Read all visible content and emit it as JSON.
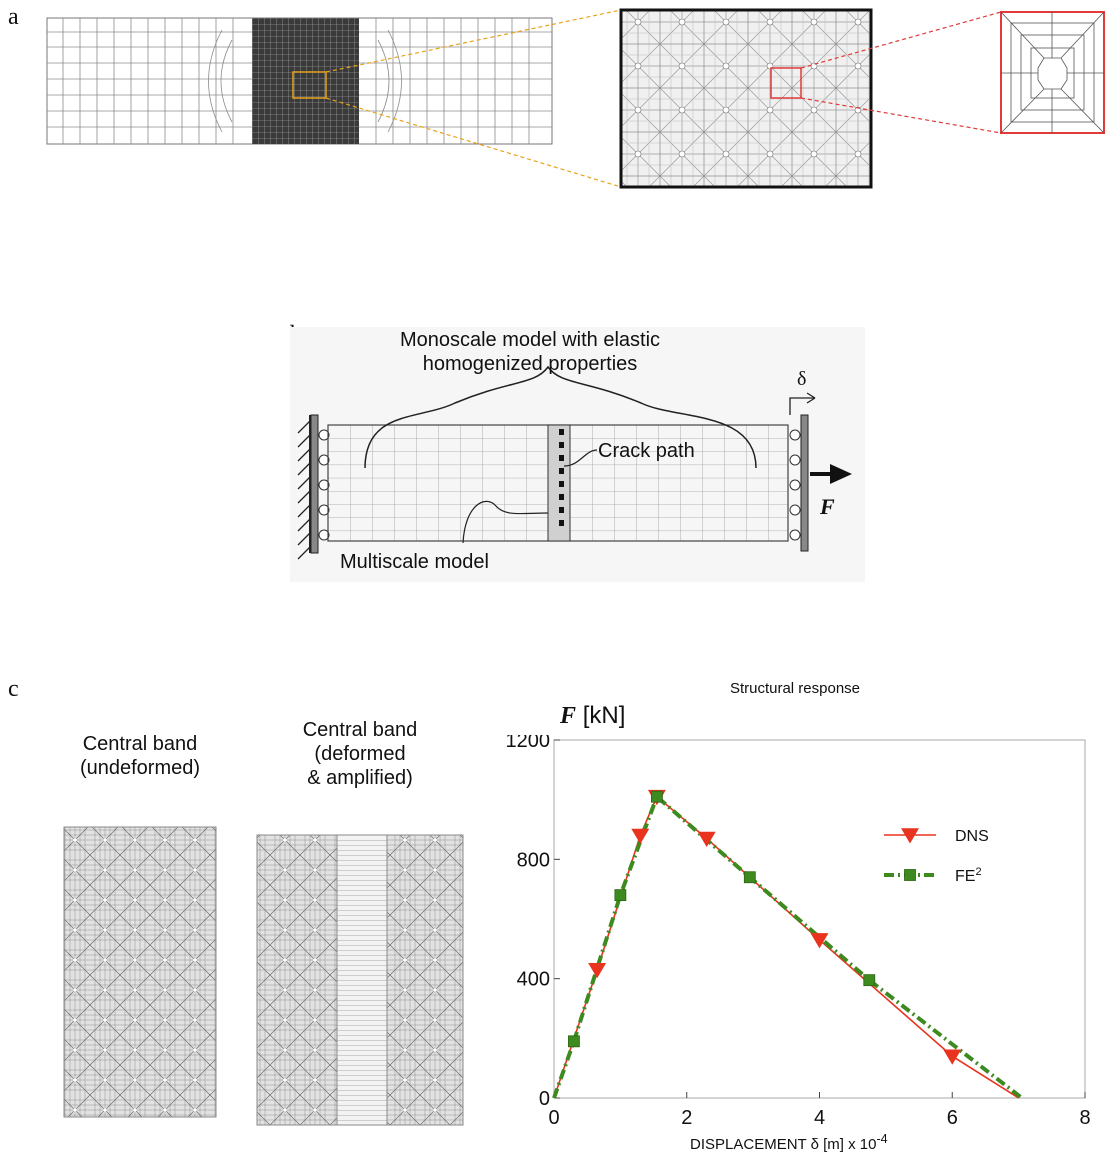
{
  "figure": {
    "panels": [
      {
        "id": "a",
        "label": "a"
      },
      {
        "id": "b",
        "label": "b",
        "monoscale_label": "Monoscale model  with elastic",
        "monoscale_label_2": "homogenized properties",
        "crack_label": "Crack path",
        "multiscale_label": "Multiscale model",
        "displacement_symbol": "δ",
        "force_symbol": "F"
      },
      {
        "id": "c",
        "label": "c",
        "undeformed_label": [
          "Central band",
          "(undeformed)"
        ],
        "deformed_label": [
          "Central band",
          "(deformed",
          "& amplified)"
        ]
      }
    ]
  },
  "chart_data": {
    "type": "line",
    "title": "Structural response",
    "ylabel_symbol": "F",
    "ylabel_unit": "[kN]",
    "xlabel": "DISPLACEMENT δ  [m]  x 10",
    "xlabel_exponent": "-4",
    "xlim": [
      0,
      8
    ],
    "ylim": [
      0,
      1200
    ],
    "x_ticks": [
      0,
      2,
      4,
      6,
      8
    ],
    "y_ticks": [
      0,
      400,
      800,
      1200
    ],
    "legend_position": "right",
    "series": [
      {
        "name": "DNS",
        "color": "#e8331f",
        "marker": "triangle-down",
        "x": [
          0,
          0.65,
          1.3,
          1.55,
          2.3,
          4.0,
          6.0,
          7.0
        ],
        "y": [
          0,
          430,
          880,
          1010,
          870,
          530,
          140,
          0
        ]
      },
      {
        "name": "FE",
        "name_sup": "2",
        "color": "#3d8a1f",
        "marker": "square",
        "x": [
          0,
          0.3,
          1.0,
          1.55,
          2.95,
          4.75,
          7.05
        ],
        "y": [
          0,
          190,
          680,
          1010,
          740,
          395,
          0
        ]
      }
    ]
  }
}
